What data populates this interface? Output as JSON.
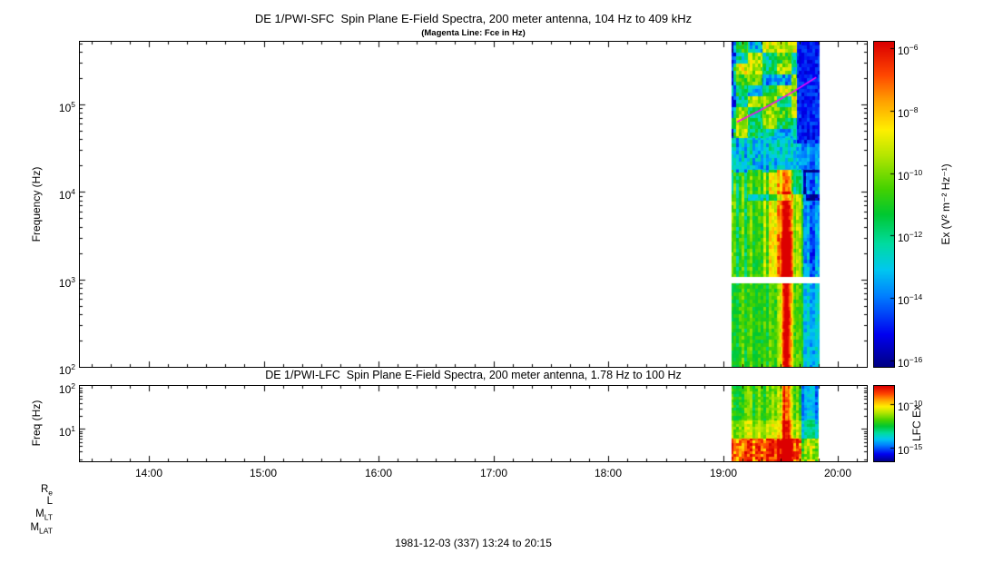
{
  "page": {
    "background": "#FFFFFF",
    "footer_date": "1981-12-03 (337) 13:24 to 20:15",
    "orbit_labels": [
      {
        "base": "R",
        "sub": "e"
      },
      {
        "base": "L",
        "sub": ""
      },
      {
        "base": "M",
        "sub": "LT"
      },
      {
        "base": "M",
        "sub": "LAT"
      }
    ]
  },
  "chart_data": [
    {
      "type": "heatmap",
      "title": "DE 1/PWI-SFC  Spin Plane E-Field Spectra, 200 meter antenna, 104 Hz to 409 kHz",
      "subtitle": "(Magenta Line: Fce in Hz)",
      "ylabel": "Frequency (Hz)",
      "x_axis": {
        "range_hours": [
          13.4,
          20.25
        ],
        "tick_hours": [
          14,
          15,
          16,
          17,
          18,
          19,
          20
        ],
        "tick_labels": [
          "14:00",
          "15:00",
          "16:00",
          "17:00",
          "18:00",
          "19:00",
          "20:00"
        ]
      },
      "y_axis": {
        "scale": "log",
        "range_hz": [
          100,
          520000
        ],
        "tick_log10": [
          5,
          4,
          3,
          2
        ],
        "tick_labels": [
          {
            "base": "10",
            "sup": "5"
          },
          {
            "base": "10",
            "sup": "4"
          },
          {
            "base": "10",
            "sup": "3"
          },
          {
            "base": "10",
            "sup": "2"
          }
        ]
      },
      "colorbar": {
        "label": "Ex (V² m⁻² Hz⁻¹)",
        "range_exponents": [
          -16.2,
          -5.8
        ],
        "tick_exponents": [
          -6,
          -8,
          -10,
          -12,
          -14,
          -16
        ],
        "tick_labels": [
          {
            "base": "10",
            "sup": "−6"
          },
          {
            "base": "10",
            "sup": "−8"
          },
          {
            "base": "10",
            "sup": "−10"
          },
          {
            "base": "10",
            "sup": "−12"
          },
          {
            "base": "10",
            "sup": "−14"
          },
          {
            "base": "10",
            "sup": "−16"
          }
        ]
      },
      "spectrogram": {
        "data_start_hour": 19.07,
        "data_end_hour": 19.83,
        "burst_center_hour": 19.55,
        "burst_sigma_hours": 0.05,
        "broad_enhancement_center_hour": 19.5,
        "quiet_top_right_start_hour": 19.64,
        "right_cyan_start_hour": 19.7,
        "gap_log10": [
          2.95,
          3.03
        ],
        "band_edges_log10": {
          "low_top": 2.95,
          "mid_top": 4.25,
          "cyan_top": 4.62
        },
        "fce_line": {
          "color": "#FF00FF",
          "start_hour_log10": [
            19.12,
            4.8
          ],
          "end_hour_log10": [
            19.81,
            5.31
          ]
        }
      }
    },
    {
      "type": "heatmap",
      "title": "DE 1/PWI-LFC  Spin Plane E-Field Spectra, 200 meter antenna, 1.78 Hz to 100 Hz",
      "subtitle": "",
      "ylabel": "Freq (Hz)",
      "x_axis": {
        "range_hours": [
          13.4,
          20.25
        ],
        "tick_hours": [
          14,
          15,
          16,
          17,
          18,
          19,
          20
        ],
        "tick_labels": [
          "14:00",
          "15:00",
          "16:00",
          "17:00",
          "18:00",
          "19:00",
          "20:00"
        ]
      },
      "y_axis": {
        "scale": "log",
        "range_hz": [
          1.78,
          100
        ],
        "tick_log10": [
          2,
          1
        ],
        "tick_labels": [
          {
            "base": "10",
            "sup": "2"
          },
          {
            "base": "10",
            "sup": "1"
          }
        ]
      },
      "colorbar": {
        "label": "LFC Ex",
        "range_exponents": [
          -16.5,
          -8
        ],
        "tick_exponents": [
          -10,
          -15
        ],
        "tick_labels": [
          {
            "base": "10",
            "sup": "−10"
          },
          {
            "base": "10",
            "sup": "−15"
          }
        ]
      },
      "spectrogram": {
        "data_start_hour": 19.07,
        "data_end_hour": 19.82,
        "burst_center_hour": 19.55,
        "burst_sigma_hours": 0.045,
        "right_fade_start_hour": 19.68,
        "red_bottom_top_log10": 0.78
      }
    }
  ],
  "colormap": [
    {
      "t": 0.0,
      "c": "#000082"
    },
    {
      "t": 0.1,
      "c": "#0000F0"
    },
    {
      "t": 0.22,
      "c": "#0080FF"
    },
    {
      "t": 0.3,
      "c": "#00C8F0"
    },
    {
      "t": 0.38,
      "c": "#00DCA0"
    },
    {
      "t": 0.47,
      "c": "#00C832"
    },
    {
      "t": 0.55,
      "c": "#46D200"
    },
    {
      "t": 0.65,
      "c": "#B4E600"
    },
    {
      "t": 0.73,
      "c": "#FFF000"
    },
    {
      "t": 0.82,
      "c": "#FFA000"
    },
    {
      "t": 0.9,
      "c": "#FF4600"
    },
    {
      "t": 1.0,
      "c": "#DC0000"
    }
  ]
}
